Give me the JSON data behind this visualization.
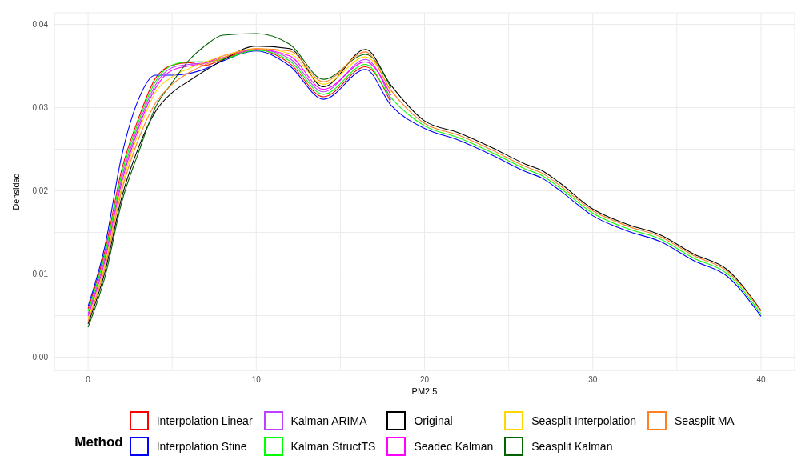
{
  "chart_data": {
    "type": "line",
    "xlabel": "PM2.5",
    "ylabel": "Densidad",
    "legend_title": "Method",
    "legend": "bottom",
    "grid": true,
    "line_style": "solid",
    "marker": "none",
    "xlim": [
      -2,
      42
    ],
    "ylim": [
      -0.0016,
      0.0414
    ],
    "xticks": [
      0,
      {
        "value": 5,
        "label": null
      },
      10,
      {
        "value": 15,
        "label": null
      },
      20,
      {
        "value": 25,
        "label": null
      },
      30,
      {
        "value": 35,
        "label": null
      },
      40
    ],
    "yticks": [
      {
        "value": 0,
        "label": "0.00"
      },
      {
        "value": 0.005,
        "label": null
      },
      {
        "value": 0.01,
        "label": "0.01"
      },
      {
        "value": 0.015,
        "label": null
      },
      {
        "value": 0.02,
        "label": "0.02"
      },
      {
        "value": 0.025,
        "label": null
      },
      {
        "value": 0.03,
        "label": "0.03"
      },
      {
        "value": 0.035,
        "label": null
      },
      {
        "value": 0.04,
        "label": "0.04"
      }
    ],
    "x": [
      0,
      1,
      2,
      3,
      4,
      5,
      6,
      7,
      8,
      10,
      12,
      14,
      16.5,
      18,
      20,
      22,
      24,
      26,
      27,
      28,
      30,
      32,
      34,
      36,
      38,
      40
    ],
    "series": [
      {
        "name": "Interpolation Linear",
        "color": "#ff0000",
        "values": [
          0.0058,
          0.0127,
          0.0225,
          0.0287,
          0.0335,
          0.0351,
          0.0354,
          0.0351,
          0.0358,
          0.037,
          0.0353,
          0.0313,
          0.0349,
          0.0306,
          null,
          null,
          null,
          null,
          null,
          null,
          null,
          null,
          null,
          null,
          null,
          null
        ]
      },
      {
        "name": "Interpolation Stine",
        "color": "#0000ff",
        "values": [
          0.0061,
          0.0133,
          0.0242,
          0.031,
          0.0339,
          0.0339,
          0.0341,
          0.0347,
          0.0356,
          0.0368,
          0.035,
          0.031,
          0.0346,
          0.0303,
          0.0275,
          0.0261,
          0.0243,
          0.0223,
          0.0215,
          0.0201,
          0.017,
          0.0152,
          0.0139,
          0.0116,
          0.0097,
          0.0049
        ]
      },
      {
        "name": "Kalman ARIMA",
        "color": "#bf3eff",
        "values": [
          0.0052,
          0.0119,
          0.0215,
          0.0279,
          0.0327,
          0.0348,
          0.0352,
          0.0354,
          0.036,
          0.037,
          0.0359,
          0.0319,
          0.0358,
          0.0309,
          null,
          null,
          null,
          null,
          null,
          null,
          null,
          null,
          null,
          null,
          null,
          null
        ]
      },
      {
        "name": "Kalman StructTS",
        "color": "#00ff00",
        "values": [
          0.0055,
          0.0123,
          0.022,
          0.0283,
          0.0331,
          0.0351,
          0.0355,
          0.0355,
          0.0358,
          0.0369,
          0.0356,
          0.0316,
          0.0352,
          0.0312,
          0.0278,
          0.0264,
          0.0246,
          0.0226,
          0.0218,
          0.0204,
          0.0173,
          0.0155,
          0.0142,
          0.0119,
          0.01,
          0.0052
        ]
      },
      {
        "name": "Original",
        "color": "#000000",
        "values": [
          0.004,
          0.0102,
          0.0192,
          0.0252,
          0.0295,
          0.0318,
          0.0332,
          0.0345,
          0.0357,
          0.0374,
          0.0371,
          0.0325,
          0.037,
          0.0327,
          0.0284,
          0.027,
          0.0252,
          0.0232,
          0.0224,
          0.021,
          0.0178,
          0.016,
          0.0147,
          0.0124,
          0.0105,
          0.0056
        ]
      },
      {
        "name": "Seadec Kalman",
        "color": "#ff00ff",
        "values": [
          0.0049,
          0.0115,
          0.021,
          0.0275,
          0.0323,
          0.0345,
          0.035,
          0.0354,
          0.0362,
          0.037,
          0.0362,
          0.0322,
          0.0355,
          0.0315,
          null,
          null,
          null,
          null,
          null,
          null,
          null,
          null,
          null,
          null,
          null,
          null
        ]
      },
      {
        "name": "Seasplit Interpolation",
        "color": "#ffd700",
        "values": [
          0.0046,
          0.0111,
          0.0205,
          0.027,
          0.0318,
          0.0337,
          0.0347,
          0.0355,
          0.0362,
          0.0371,
          0.0365,
          0.0328,
          0.0361,
          0.0318,
          null,
          null,
          null,
          null,
          null,
          null,
          null,
          null,
          null,
          null,
          null,
          null
        ]
      },
      {
        "name": "Seasplit Kalman",
        "color": "#006400",
        "values": [
          0.0036,
          0.0096,
          0.0186,
          0.0246,
          0.03,
          0.033,
          0.0357,
          0.0375,
          0.0387,
          0.0389,
          0.0376,
          0.0334,
          0.0364,
          0.0324,
          null,
          null,
          null,
          null,
          null,
          null,
          null,
          null,
          null,
          null,
          null,
          null
        ]
      },
      {
        "name": "Seasplit MA",
        "color": "#ff7f24",
        "values": [
          0.0043,
          0.0107,
          0.02,
          0.0262,
          0.0305,
          0.0328,
          0.0342,
          0.0352,
          0.036,
          0.0371,
          0.0368,
          0.0331,
          0.0367,
          0.0321,
          0.0281,
          0.0267,
          0.0249,
          0.0229,
          0.0221,
          0.0207,
          0.0176,
          0.0158,
          0.0145,
          0.0122,
          0.0103,
          0.0055
        ]
      }
    ]
  }
}
